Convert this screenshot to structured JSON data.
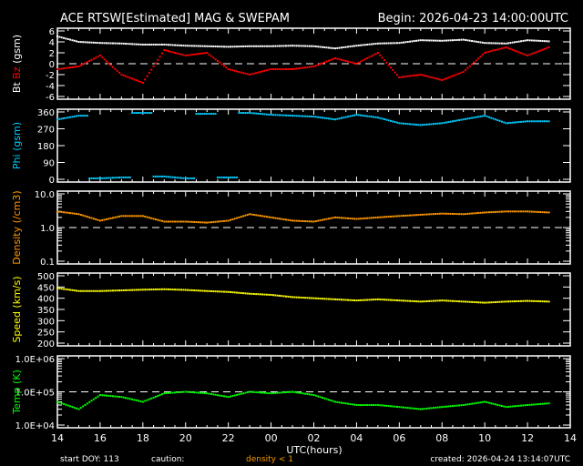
{
  "title": "ACE RTSW[Estimated] MAG & SWEPAM",
  "begin": "Begin: 2026-04-23 14:00:00UTC",
  "footer": {
    "start_doy": "start DOY: 113",
    "caution": "caution:",
    "caution_note": "density < 1",
    "created": "created: 2026-04-24 13:14:07UTC"
  },
  "colors": {
    "bt": "#ffffff",
    "bz": "#ff0000",
    "phi": "#00ccff",
    "density": "#ff9900",
    "speed": "#ffff00",
    "temp": "#00ff00",
    "caution": "#ff9900"
  },
  "chart_data": [
    {
      "type": "scatter",
      "ylabel_parts": [
        "Bt",
        "Bz",
        "(gsm)"
      ],
      "ylim": [
        -6,
        6
      ],
      "scale": "linear",
      "yticks": [
        -6,
        -4,
        -2,
        0,
        2,
        4,
        6
      ],
      "ytick_labels": [
        "-6",
        "-4",
        "-2",
        "0",
        "2",
        "4",
        "6"
      ],
      "dashed_at": 0,
      "x": [
        0,
        1,
        2,
        3,
        4,
        5,
        6,
        7,
        8,
        9,
        10,
        11,
        12,
        13,
        14,
        15,
        16,
        17,
        18,
        19,
        20,
        21,
        22,
        23
      ],
      "series": [
        {
          "name": "Bt",
          "color": "#ffffff",
          "values": [
            5,
            4,
            3.8,
            3.7,
            3.5,
            3.5,
            3.3,
            3.2,
            3.1,
            3.2,
            3.2,
            3.3,
            3.2,
            2.8,
            3.3,
            3.7,
            3.8,
            4.3,
            4.2,
            4.4,
            3.8,
            3.7,
            4.3,
            4.1
          ]
        },
        {
          "name": "Bz",
          "color": "#ff0000",
          "values": [
            -1,
            -0.5,
            1.5,
            -2,
            -3.5,
            2.5,
            1.5,
            2,
            -1,
            -2,
            -1,
            -1,
            -0.5,
            1,
            0,
            2,
            -2.5,
            -2,
            -3,
            -1.5,
            2,
            3,
            1.5,
            3
          ]
        }
      ]
    },
    {
      "type": "scatter",
      "ylabel_parts": [
        "Phi (gsm)"
      ],
      "ylim": [
        0,
        360
      ],
      "scale": "linear",
      "yticks": [
        0,
        90,
        180,
        270,
        360
      ],
      "ytick_labels": [
        "0",
        "90",
        "180",
        "270",
        "360"
      ],
      "x": [
        0,
        1,
        2,
        3,
        4,
        5,
        6,
        7,
        8,
        9,
        10,
        11,
        12,
        13,
        14,
        15,
        16,
        17,
        18,
        19,
        20,
        21,
        22,
        23
      ],
      "series": [
        {
          "name": "Phi",
          "color": "#00ccff",
          "values": [
            320,
            340,
            5,
            10,
            355,
            15,
            5,
            350,
            10,
            355,
            345,
            340,
            335,
            320,
            345,
            330,
            300,
            290,
            300,
            320,
            340,
            300,
            310,
            310
          ]
        }
      ]
    },
    {
      "type": "scatter",
      "ylabel_parts": [
        "Density (/cm3)"
      ],
      "ylim": [
        0.1,
        10
      ],
      "scale": "log",
      "yticks": [
        0.1,
        1,
        10
      ],
      "ytick_labels": [
        "0.1",
        "1.0",
        "10.0"
      ],
      "dashed_at": 1,
      "x": [
        0,
        1,
        2,
        3,
        4,
        5,
        6,
        7,
        8,
        9,
        10,
        11,
        12,
        13,
        14,
        15,
        16,
        17,
        18,
        19,
        20,
        21,
        22,
        23
      ],
      "series": [
        {
          "name": "Density",
          "color": "#ff9900",
          "values": [
            3.0,
            2.5,
            1.6,
            2.2,
            2.2,
            1.5,
            1.5,
            1.4,
            1.6,
            2.5,
            2.0,
            1.6,
            1.5,
            2.0,
            1.8,
            2.0,
            2.2,
            2.4,
            2.6,
            2.5,
            2.8,
            3.0,
            3.0,
            2.8
          ]
        }
      ]
    },
    {
      "type": "scatter",
      "ylabel_parts": [
        "Speed (km/s)"
      ],
      "ylim": [
        200,
        500
      ],
      "scale": "linear",
      "yticks": [
        200,
        250,
        300,
        350,
        400,
        450,
        500
      ],
      "ytick_labels": [
        "200",
        "250",
        "300",
        "350",
        "400",
        "450",
        "500"
      ],
      "x": [
        0,
        1,
        2,
        3,
        4,
        5,
        6,
        7,
        8,
        9,
        10,
        11,
        12,
        13,
        14,
        15,
        16,
        17,
        18,
        19,
        20,
        21,
        22,
        23
      ],
      "series": [
        {
          "name": "Speed",
          "color": "#ffff00",
          "values": [
            445,
            432,
            432,
            435,
            438,
            440,
            437,
            432,
            428,
            420,
            415,
            405,
            400,
            395,
            390,
            395,
            390,
            385,
            390,
            385,
            380,
            385,
            388,
            385
          ]
        }
      ]
    },
    {
      "type": "scatter",
      "ylabel_parts": [
        "Temp (K)"
      ],
      "ylim": [
        10000,
        1000000
      ],
      "scale": "log",
      "yticks": [
        10000,
        100000,
        1000000
      ],
      "ytick_labels": [
        "1.0E+04",
        "1.0E+05",
        "1.0E+06"
      ],
      "dashed_at": 100000,
      "x": [
        0,
        1,
        2,
        3,
        4,
        5,
        6,
        7,
        8,
        9,
        10,
        11,
        12,
        13,
        14,
        15,
        16,
        17,
        18,
        19,
        20,
        21,
        22,
        23
      ],
      "series": [
        {
          "name": "Temp",
          "color": "#00ff00",
          "values": [
            50000,
            30000,
            80000,
            70000,
            50000,
            90000,
            100000,
            90000,
            70000,
            100000,
            90000,
            100000,
            80000,
            50000,
            40000,
            40000,
            35000,
            30000,
            35000,
            40000,
            50000,
            35000,
            40000,
            45000
          ]
        }
      ]
    }
  ],
  "xaxis": {
    "label": "UTC(hours)",
    "xlim": [
      0,
      24
    ],
    "tick_labels": [
      "14",
      "16",
      "18",
      "20",
      "22",
      "00",
      "02",
      "04",
      "06",
      "08",
      "10",
      "12",
      "14"
    ]
  }
}
